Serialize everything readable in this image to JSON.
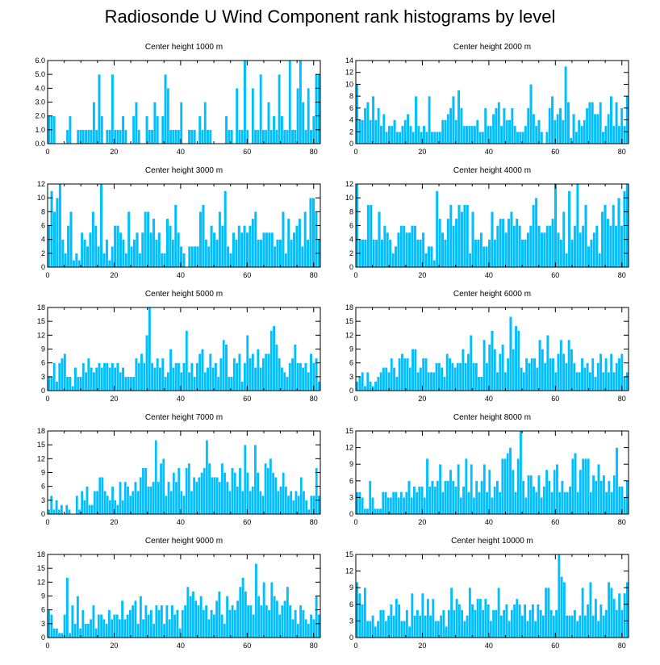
{
  "figure": {
    "title": "Radiosonde U Wind Component rank histograms by level"
  },
  "colors": {
    "bar_fill": "#00bfff",
    "axes": "#000000",
    "background": "#ffffff"
  },
  "chart_data": [
    {
      "type": "bar",
      "title": "Center height 1000 m",
      "xlim": [
        0,
        82
      ],
      "ylim": [
        0,
        6
      ],
      "xticks": [
        0,
        20,
        40,
        60,
        80
      ],
      "yticks": [
        "0.0",
        "1.0",
        "2.0",
        "3.0",
        "4.0",
        "5.0",
        "6.0"
      ],
      "values": [
        2,
        2,
        2,
        0,
        0,
        0,
        0,
        1,
        2,
        0,
        0,
        1,
        1,
        1,
        1,
        1,
        1,
        3,
        1,
        5,
        2,
        0,
        1,
        1,
        5,
        1,
        1,
        1,
        2,
        1,
        0,
        0,
        2,
        3,
        1,
        0,
        0,
        2,
        1,
        1,
        3,
        2,
        0,
        2,
        5,
        4,
        1,
        1,
        1,
        1,
        3,
        0,
        0,
        1,
        1,
        1,
        0,
        2,
        1,
        3,
        1,
        1,
        0,
        0,
        0,
        0,
        0,
        2,
        1,
        1,
        0,
        4,
        1,
        1,
        6,
        1,
        0,
        4,
        1,
        1,
        5,
        1,
        1,
        3,
        1,
        2,
        1,
        5,
        2,
        1,
        1,
        6,
        1,
        1,
        4,
        6,
        3,
        1,
        4,
        1,
        2,
        5,
        5
      ]
    },
    {
      "type": "bar",
      "title": "Center height 2000 m",
      "xlim": [
        0,
        82
      ],
      "ylim": [
        0,
        14
      ],
      "xticks": [
        0,
        20,
        40,
        60,
        80
      ],
      "yticks": [
        "0",
        "2",
        "4",
        "6",
        "8",
        "10",
        "12",
        "14"
      ],
      "values": [
        10,
        4,
        4,
        6,
        7,
        4,
        8,
        4,
        6,
        3,
        5,
        2,
        3,
        3,
        4,
        2,
        2,
        3,
        4,
        5,
        3,
        2,
        8,
        3,
        2,
        3,
        2,
        8,
        2,
        2,
        2,
        2,
        4,
        4,
        5,
        6,
        8,
        4,
        9,
        6,
        3,
        3,
        3,
        3,
        3,
        4,
        2,
        2,
        6,
        3,
        3,
        5,
        6,
        7,
        3,
        6,
        4,
        4,
        6,
        3,
        2,
        2,
        2,
        3,
        6,
        10,
        5,
        3,
        4,
        2,
        0,
        2,
        6,
        8,
        4,
        5,
        6,
        4,
        13,
        7,
        1,
        5,
        2,
        4,
        3,
        4,
        6,
        7,
        7,
        5,
        5,
        7,
        2,
        3,
        5,
        8,
        3,
        7,
        3,
        6,
        3,
        8
      ]
    },
    {
      "type": "bar",
      "title": "Center height 3000 m",
      "xlim": [
        0,
        82
      ],
      "ylim": [
        0,
        12
      ],
      "xticks": [
        0,
        20,
        40,
        60,
        80
      ],
      "yticks": [
        "0",
        "2",
        "4",
        "6",
        "8",
        "10",
        "12"
      ],
      "values": [
        6,
        11,
        8,
        10,
        12,
        4,
        2,
        6,
        8,
        1,
        2,
        1,
        5,
        4,
        3,
        5,
        8,
        6,
        3,
        12,
        2,
        4,
        1,
        3,
        6,
        6,
        5,
        4,
        2,
        8,
        3,
        4,
        5,
        2,
        5,
        8,
        8,
        5,
        7,
        4,
        5,
        2,
        2,
        7,
        6,
        4,
        9,
        5,
        3,
        2,
        0,
        3,
        3,
        3,
        3,
        8,
        9,
        4,
        3,
        6,
        5,
        4,
        8,
        6,
        11,
        3,
        2,
        5,
        4,
        6,
        5,
        6,
        5,
        6,
        7,
        8,
        4,
        4,
        5,
        5,
        5,
        5,
        3,
        4,
        4,
        8,
        2,
        7,
        4,
        5,
        6,
        7,
        3,
        8,
        4,
        10,
        10,
        8,
        4
      ]
    },
    {
      "type": "bar",
      "title": "Center height 4000 m",
      "xlim": [
        0,
        82
      ],
      "ylim": [
        0,
        12
      ],
      "xticks": [
        0,
        20,
        40,
        60,
        80
      ],
      "yticks": [
        "0",
        "2",
        "4",
        "6",
        "8",
        "10",
        "12"
      ],
      "values": [
        12,
        4,
        4,
        4,
        9,
        9,
        4,
        4,
        8,
        4,
        6,
        5,
        4,
        2,
        3,
        5,
        6,
        6,
        5,
        5,
        6,
        6,
        4,
        4,
        5,
        2,
        3,
        3,
        1,
        11,
        7,
        5,
        4,
        7,
        9,
        6,
        7,
        9,
        8,
        9,
        9,
        2,
        8,
        4,
        4,
        5,
        3,
        3,
        4,
        8,
        4,
        6,
        7,
        7,
        5,
        7,
        8,
        6,
        7,
        6,
        4,
        4,
        5,
        6,
        9,
        10,
        6,
        5,
        5,
        6,
        6,
        7,
        12,
        5,
        4,
        8,
        2,
        11,
        4,
        6,
        12,
        5,
        6,
        9,
        3,
        4,
        5,
        6,
        2,
        8,
        9,
        7,
        6,
        9,
        6,
        10,
        6,
        11,
        12
      ]
    },
    {
      "type": "bar",
      "title": "Center height 5000 m",
      "xlim": [
        0,
        82
      ],
      "ylim": [
        0,
        18
      ],
      "xticks": [
        0,
        20,
        40,
        60,
        80
      ],
      "yticks": [
        "0",
        "3",
        "6",
        "9",
        "12",
        "15",
        "18"
      ],
      "values": [
        3,
        3,
        6,
        2,
        6,
        7,
        8,
        3,
        3,
        1,
        5,
        3,
        3,
        6,
        4,
        7,
        5,
        4,
        5,
        6,
        5,
        6,
        6,
        5,
        6,
        5,
        6,
        4,
        5,
        3,
        3,
        3,
        3,
        7,
        6,
        8,
        6,
        12,
        18,
        6,
        5,
        7,
        5,
        7,
        3,
        4,
        9,
        5,
        6,
        6,
        4,
        6,
        13,
        4,
        6,
        3,
        6,
        8,
        9,
        4,
        5,
        8,
        5,
        6,
        3,
        7,
        11,
        10,
        3,
        3,
        7,
        6,
        8,
        2,
        6,
        12,
        7,
        8,
        5,
        9,
        5,
        7,
        8,
        8,
        13,
        14,
        10,
        7,
        5,
        4,
        3,
        6,
        7,
        10,
        6,
        6,
        5,
        6,
        4,
        8,
        6,
        7,
        2
      ]
    },
    {
      "type": "bar",
      "title": "Center height 6000 m",
      "xlim": [
        0,
        82
      ],
      "ylim": [
        0,
        18
      ],
      "xticks": [
        0,
        20,
        40,
        60,
        80
      ],
      "yticks": [
        "0",
        "3",
        "6",
        "9",
        "12",
        "15",
        "18"
      ],
      "values": [
        2,
        3,
        4,
        1,
        4,
        2,
        1,
        2,
        3,
        4,
        5,
        5,
        4,
        7,
        5,
        3,
        7,
        8,
        7,
        7,
        5,
        9,
        9,
        4,
        5,
        7,
        7,
        4,
        4,
        4,
        6,
        6,
        5,
        3,
        8,
        7,
        6,
        5,
        6,
        6,
        9,
        6,
        8,
        12,
        6,
        6,
        3,
        3,
        11,
        6,
        10,
        13,
        9,
        4,
        8,
        10,
        4,
        7,
        16,
        9,
        14,
        13,
        5,
        4,
        7,
        6,
        7,
        7,
        5,
        11,
        9,
        6,
        12,
        7,
        7,
        4,
        8,
        11,
        8,
        6,
        11,
        9,
        6,
        4,
        4,
        7,
        5,
        6,
        4,
        7,
        3,
        6,
        8,
        4,
        7,
        4,
        8,
        4,
        6,
        7,
        8,
        3,
        4
      ]
    },
    {
      "type": "bar",
      "title": "Center height 7000 m",
      "xlim": [
        0,
        82
      ],
      "ylim": [
        0,
        18
      ],
      "xticks": [
        0,
        20,
        40,
        60,
        80
      ],
      "yticks": [
        "0",
        "3",
        "6",
        "9",
        "12",
        "15",
        "18"
      ],
      "values": [
        1,
        4,
        1,
        3,
        1,
        2,
        0,
        2,
        1,
        0,
        0,
        4,
        1,
        5,
        3,
        6,
        2,
        2,
        5,
        5,
        8,
        8,
        5,
        4,
        3,
        6,
        3,
        2,
        7,
        3,
        7,
        6,
        4,
        5,
        7,
        5,
        8,
        10,
        10,
        6,
        6,
        7,
        16,
        7,
        11,
        12,
        4,
        7,
        5,
        9,
        7,
        10,
        5,
        4,
        10,
        11,
        5,
        8,
        7,
        8,
        9,
        10,
        16,
        11,
        8,
        8,
        8,
        7,
        11,
        9,
        7,
        5,
        10,
        9,
        6,
        10,
        5,
        15,
        9,
        5,
        6,
        15,
        9,
        5,
        4,
        11,
        10,
        12,
        9,
        8,
        5,
        6,
        9,
        6,
        4,
        5,
        3,
        5,
        4,
        8,
        5,
        3,
        1,
        4,
        4,
        10,
        4
      ]
    },
    {
      "type": "bar",
      "title": "Center height 8000 m",
      "xlim": [
        0,
        82
      ],
      "ylim": [
        0,
        15
      ],
      "xticks": [
        0,
        20,
        40,
        60,
        80
      ],
      "yticks": [
        "0",
        "3",
        "6",
        "9",
        "12",
        "15"
      ],
      "values": [
        4,
        4,
        3,
        1,
        1,
        6,
        3,
        1,
        1,
        1,
        4,
        4,
        3,
        3,
        4,
        4,
        3,
        4,
        3,
        4,
        6,
        3,
        5,
        4,
        5,
        5,
        3,
        10,
        5,
        6,
        5,
        6,
        9,
        4,
        6,
        6,
        8,
        6,
        5,
        9,
        3,
        5,
        10,
        4,
        9,
        3,
        6,
        4,
        6,
        9,
        4,
        8,
        3,
        5,
        6,
        4,
        10,
        10,
        11,
        12,
        8,
        4,
        10,
        15,
        6,
        3,
        7,
        7,
        5,
        4,
        7,
        3,
        5,
        8,
        6,
        4,
        8,
        9,
        4,
        6,
        4,
        4,
        5,
        10,
        11,
        4,
        8,
        10,
        10,
        10,
        4,
        7,
        6,
        9,
        6,
        7,
        4,
        6,
        4,
        7,
        12,
        5,
        5,
        3,
        6
      ]
    },
    {
      "type": "bar",
      "title": "Center height 9000 m",
      "xlim": [
        0,
        82
      ],
      "ylim": [
        0,
        18
      ],
      "xticks": [
        0,
        20,
        40,
        60,
        80
      ],
      "yticks": [
        "0",
        "3",
        "6",
        "9",
        "12",
        "15",
        "18"
      ],
      "values": [
        6,
        5,
        2,
        2,
        1,
        1,
        5,
        13,
        1,
        7,
        3,
        9,
        2,
        6,
        3,
        3,
        4,
        7,
        2,
        5,
        5,
        4,
        3,
        6,
        4,
        5,
        5,
        4,
        8,
        4,
        5,
        6,
        7,
        8,
        3,
        9,
        4,
        7,
        5,
        6,
        3,
        7,
        6,
        7,
        3,
        7,
        4,
        7,
        5,
        6,
        2,
        6,
        7,
        11,
        9,
        10,
        8,
        7,
        9,
        6,
        7,
        4,
        6,
        5,
        8,
        10,
        5,
        3,
        9,
        6,
        7,
        6,
        8,
        11,
        13,
        10,
        7,
        7,
        5,
        16,
        9,
        7,
        12,
        7,
        6,
        12,
        9,
        8,
        5,
        7,
        8,
        11,
        7,
        4,
        6,
        3,
        7,
        6,
        4,
        3,
        5,
        4,
        9,
        5
      ]
    },
    {
      "type": "bar",
      "title": "Center height 10000 m",
      "xlim": [
        0,
        82
      ],
      "ylim": [
        0,
        15
      ],
      "xticks": [
        0,
        20,
        40,
        60,
        80
      ],
      "yticks": [
        "0",
        "3",
        "6",
        "9",
        "12",
        "15"
      ],
      "values": [
        10,
        8,
        6,
        9,
        3,
        3,
        4,
        2,
        3,
        5,
        5,
        3,
        4,
        6,
        4,
        7,
        6,
        3,
        3,
        5,
        2,
        8,
        4,
        5,
        4,
        8,
        4,
        7,
        4,
        7,
        3,
        3,
        4,
        5,
        2,
        5,
        9,
        5,
        7,
        6,
        5,
        3,
        4,
        9,
        6,
        5,
        7,
        7,
        5,
        7,
        6,
        3,
        5,
        5,
        9,
        4,
        5,
        6,
        3,
        5,
        6,
        7,
        6,
        4,
        6,
        3,
        5,
        6,
        3,
        6,
        5,
        4,
        9,
        9,
        5,
        4,
        5,
        15,
        11,
        10,
        4,
        4,
        4,
        5,
        3,
        4,
        9,
        4,
        6,
        10,
        4,
        7,
        3,
        6,
        4,
        5,
        10,
        9,
        7,
        5,
        8,
        5,
        8,
        10
      ]
    }
  ]
}
